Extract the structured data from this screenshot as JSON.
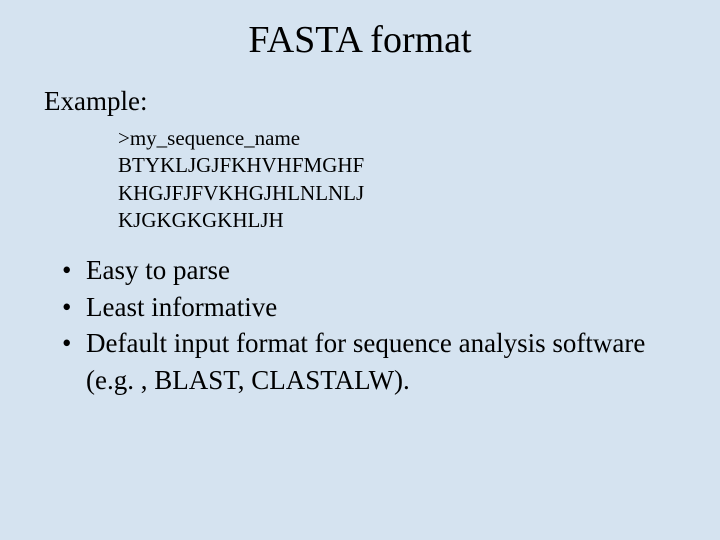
{
  "slide": {
    "title": "FASTA format",
    "title_fontsize": 38,
    "background_color": "#d5e3f0",
    "text_color": "#000000",
    "font_family": "Times New Roman",
    "example_label": "Example:",
    "example_label_fontsize": 27,
    "code": {
      "fontsize": 21,
      "lines": [
        ">my_sequence_name",
        "BTYKLJGJFKHVHFMGHF",
        "KHGJFJFVKHGJHLNLNLJ",
        "KJGKGKGKHLJH"
      ]
    },
    "bullets": {
      "fontsize": 27,
      "items": [
        "Easy to parse",
        "Least informative",
        "Default input format for sequence analysis software (e.g. , BLAST, CLASTALW)."
      ]
    }
  }
}
